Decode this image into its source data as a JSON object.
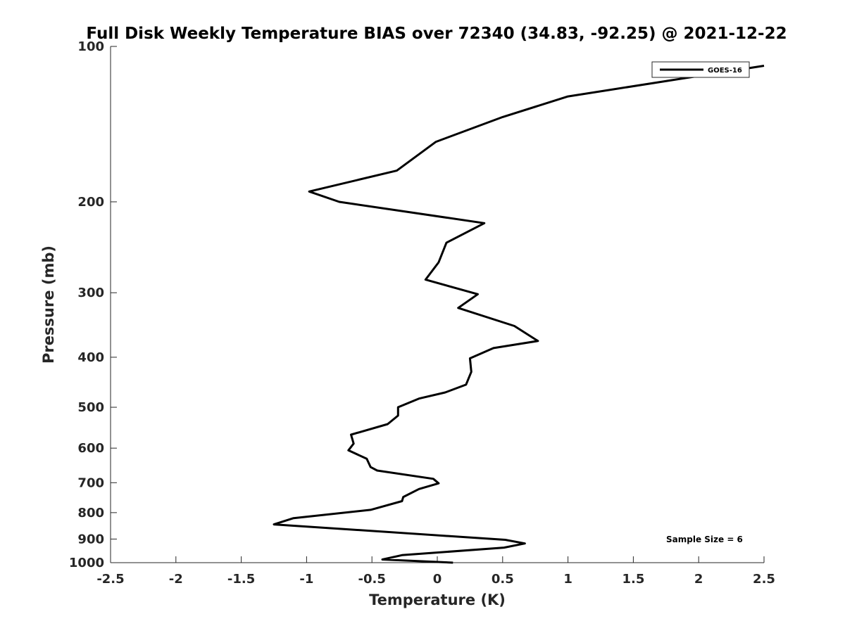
{
  "chart_data": {
    "type": "line",
    "title": "Full Disk Weekly Temperature BIAS over 72340 (34.83, -92.25) @ 2021-12-22",
    "xlabel": "Temperature (K)",
    "ylabel": "Pressure (mb)",
    "xlim": [
      -2.5,
      2.5
    ],
    "ylim": [
      100,
      1000
    ],
    "yscale": "log",
    "yreversed": true,
    "grid": false,
    "legend_position": "top-right",
    "x_ticks": [
      "-2.5",
      "-2",
      "-1.5",
      "-1",
      "-0.5",
      "0",
      "0.5",
      "1",
      "1.5",
      "2",
      "2.5"
    ],
    "y_ticks": [
      "100",
      "200",
      "300",
      "400",
      "500",
      "600",
      "700",
      "800",
      "900",
      "1000"
    ],
    "annotation": "Sample Size = 6",
    "series": [
      {
        "name": "GOES-16",
        "color": "#000000",
        "points": [
          [
            2.5,
            109
          ],
          [
            1.0,
            125
          ],
          [
            0.5,
            137
          ],
          [
            -0.01,
            153
          ],
          [
            -0.31,
            174
          ],
          [
            -0.98,
            191
          ],
          [
            -0.75,
            200
          ],
          [
            0.36,
            220
          ],
          [
            0.07,
            240
          ],
          [
            0.01,
            262
          ],
          [
            -0.09,
            283
          ],
          [
            0.31,
            302
          ],
          [
            0.16,
            321
          ],
          [
            0.59,
            348
          ],
          [
            0.77,
            372
          ],
          [
            0.43,
            384
          ],
          [
            0.25,
            402
          ],
          [
            0.26,
            427
          ],
          [
            0.22,
            452
          ],
          [
            0.06,
            468
          ],
          [
            -0.14,
            481
          ],
          [
            -0.3,
            500
          ],
          [
            -0.3,
            519
          ],
          [
            -0.38,
            539
          ],
          [
            -0.66,
            565
          ],
          [
            -0.64,
            588
          ],
          [
            -0.68,
            606
          ],
          [
            -0.54,
            629
          ],
          [
            -0.51,
            653
          ],
          [
            -0.46,
            663
          ],
          [
            -0.03,
            688
          ],
          [
            0.01,
            702
          ],
          [
            -0.14,
            720
          ],
          [
            -0.26,
            746
          ],
          [
            -0.27,
            760
          ],
          [
            -0.51,
            790
          ],
          [
            -1.1,
            820
          ],
          [
            -1.25,
            843
          ],
          [
            0.52,
            903
          ],
          [
            0.67,
            918
          ],
          [
            0.51,
            935
          ],
          [
            -0.27,
            967
          ],
          [
            -0.42,
            986
          ],
          [
            0.12,
            1000
          ]
        ]
      }
    ]
  }
}
